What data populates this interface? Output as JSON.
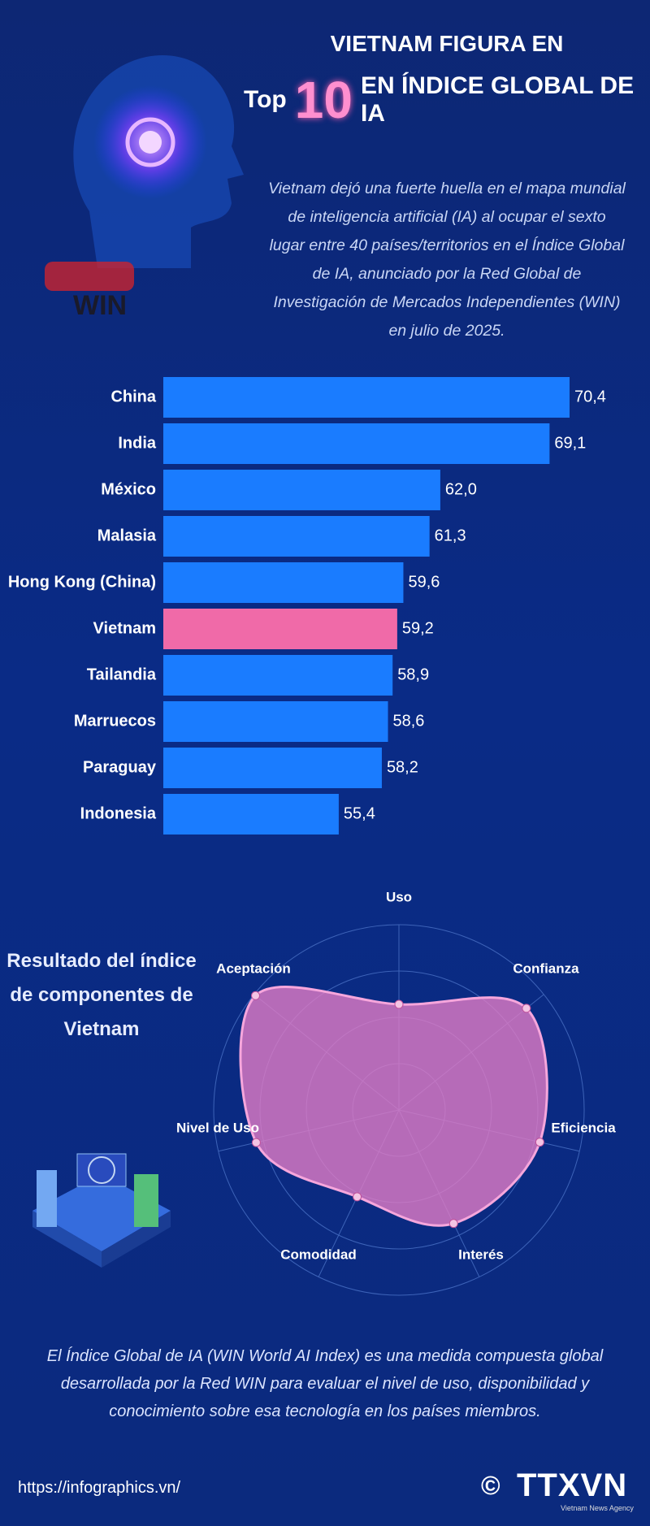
{
  "header": {
    "title_line1": "VIETNAM FIGURA EN",
    "title_top": "Top",
    "title_number": "10",
    "title_rest": "EN ÍNDICE GLOBAL DE IA",
    "intro": "Vietnam dejó una fuerte huella en el mapa mundial de inteligencia artificial (IA) al ocupar el sexto lugar entre 40 países/territorios en el Índice Global de IA, anunciado por la Red Global de Investigación de Mercados Independientes (WIN) en julio de 2025.",
    "logo_text": "WIN"
  },
  "chart_data": [
    {
      "type": "bar",
      "orientation": "horizontal",
      "categories": [
        "China",
        "India",
        "México",
        "Malasia",
        "Hong Kong (China)",
        "Vietnam",
        "Tailandia",
        "Marruecos",
        "Paraguay",
        "Indonesia"
      ],
      "values": [
        70.4,
        69.1,
        62.0,
        61.3,
        59.6,
        59.2,
        58.9,
        58.6,
        58.2,
        55.4
      ],
      "value_labels": [
        "70,4",
        "69,1",
        "62,0",
        "61,3",
        "59,6",
        "59,2",
        "58,9",
        "58,6",
        "58,2",
        "55,4"
      ],
      "colors": [
        "#1a7cff",
        "#1a7cff",
        "#1a7cff",
        "#1a7cff",
        "#1a7cff",
        "#f06aa8",
        "#1a7cff",
        "#1a7cff",
        "#1a7cff",
        "#1a7cff"
      ],
      "xlim": [
        44,
        70.4
      ]
    },
    {
      "type": "radar",
      "title": "Resultado del índice de componentes de Vietnam",
      "categories": [
        "Uso",
        "Confianza",
        "Eficiencia",
        "Interés",
        "Comodidad",
        "Nivel de Uso",
        "Aceptación"
      ],
      "values": [
        57,
        88,
        78,
        68,
        52,
        79,
        99
      ],
      "color": "#e17cc6",
      "rlim": [
        0,
        100
      ]
    }
  ],
  "footer": {
    "note": "El Índice Global de IA (WIN World AI Index) es una medida compuesta global desarrollada por la Red WIN para evaluar el nivel de uso, disponibilidad y conocimiento sobre esa tecnología en los países miembros.",
    "url": "https://infographics.vn/",
    "copyright": "©",
    "agency": "TTXVN",
    "agency_sub": "Vietnam News Agency"
  }
}
